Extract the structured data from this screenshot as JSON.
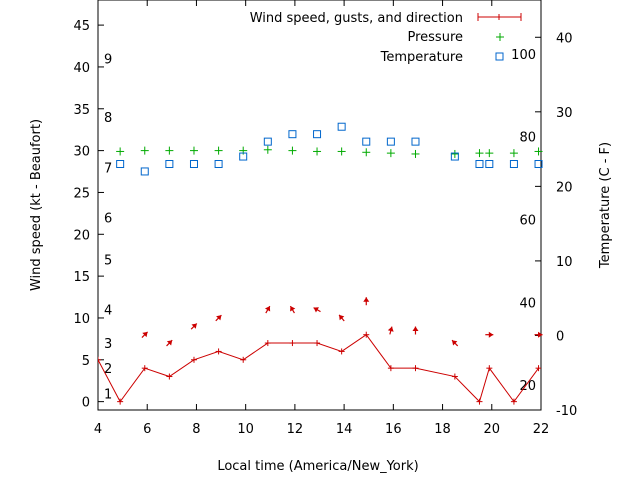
{
  "chart_data": {
    "type": "line",
    "xlabel": "Local time (America/New_York)",
    "ylabel_left": "Wind speed (kt - Beaufort)",
    "ylabel_right": "Temperature (C - F)",
    "x_range": [
      4,
      22
    ],
    "x_ticks": [
      "4",
      "6",
      "8",
      "10",
      "12",
      "14",
      "16",
      "18",
      "20",
      "22"
    ],
    "y_left_range": [
      -1,
      48
    ],
    "y_left_ticks": [
      "0",
      "5",
      "10",
      "15",
      "20",
      "25",
      "30",
      "35",
      "40",
      "45"
    ],
    "y_right_range": [
      -10,
      45
    ],
    "y_right_ticks": [
      "-10",
      "0",
      "10",
      "20",
      "30",
      "40"
    ],
    "beaufort_labels": [
      "1",
      "2",
      "3",
      "4",
      "5",
      "6",
      "7",
      "8",
      "9"
    ],
    "fahrenheit_labels": [
      "20",
      "40",
      "60",
      "80",
      "100"
    ],
    "legend": [
      "Wind speed, gusts, and direction",
      "Pressure",
      "Temperature"
    ],
    "colors": {
      "wind": "#cc0000",
      "pressure": "#00aa00",
      "temperature": "#0066cc"
    },
    "wind_speed": {
      "x": [
        4,
        4.9,
        5.9,
        6.9,
        7.9,
        8.9,
        9.9,
        10.9,
        11.9,
        12.9,
        13.9,
        14.9,
        15.9,
        16.9,
        18.5,
        19.5,
        19.9,
        20.9,
        21.9
      ],
      "y": [
        5,
        0,
        4,
        3,
        5,
        6,
        5,
        7,
        7,
        7,
        6,
        8,
        4,
        4,
        3,
        0,
        4,
        0,
        4
      ]
    },
    "wind_direction_arrows": {
      "x": [
        5.9,
        6.9,
        7.9,
        8.9,
        10.9,
        11.9,
        12.9,
        13.9,
        14.9,
        15.9,
        16.9,
        18.5,
        19.9,
        21.9
      ],
      "y": [
        8,
        7,
        9,
        10,
        11,
        11,
        11,
        10,
        12,
        8.5,
        8.5,
        7,
        8,
        8
      ],
      "heading_deg": [
        45,
        45,
        45,
        45,
        30,
        330,
        300,
        320,
        0,
        15,
        0,
        315,
        90,
        90
      ]
    },
    "pressure": {
      "x": [
        4.9,
        5.9,
        6.9,
        7.9,
        8.9,
        9.9,
        10.9,
        11.9,
        12.9,
        13.9,
        14.9,
        15.9,
        16.9,
        18.5,
        19.5,
        19.9,
        20.9,
        21.9
      ],
      "y": [
        29.9,
        30.0,
        30.0,
        30.0,
        30.0,
        30.0,
        30.1,
        30.0,
        29.9,
        29.9,
        29.8,
        29.7,
        29.6,
        29.6,
        29.7,
        29.7,
        29.7,
        29.9
      ]
    },
    "temperature": {
      "x": [
        4.9,
        5.9,
        6.9,
        7.9,
        8.9,
        9.9,
        10.9,
        11.9,
        12.9,
        13.9,
        14.9,
        15.9,
        16.9,
        18.5,
        19.5,
        19.9,
        20.9,
        21.9
      ],
      "y": [
        23,
        22,
        23,
        23,
        23,
        24,
        26,
        27,
        27,
        28,
        26,
        26,
        26,
        24,
        23,
        23,
        23,
        23
      ]
    }
  }
}
